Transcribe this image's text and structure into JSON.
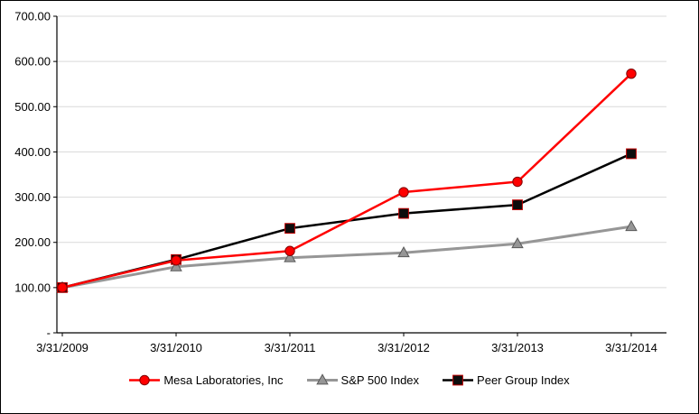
{
  "chart_data": {
    "type": "line",
    "title": "",
    "xlabel": "",
    "ylabel": "",
    "x": [
      "3/31/2009",
      "3/31/2010",
      "3/31/2011",
      "3/31/2012",
      "3/31/2013",
      "3/31/2014"
    ],
    "series": [
      {
        "name": "Mesa Laboratories, Inc",
        "marker": "circle",
        "color": "#FF0000",
        "marker_fill": "#FF0000",
        "marker_stroke": "#7F0000",
        "line_width": 2.5,
        "values": [
          100,
          160,
          181,
          311,
          334,
          573
        ]
      },
      {
        "name": "S&P 500 Index",
        "marker": "triangle",
        "color": "#969696",
        "marker_fill": "#969696",
        "marker_stroke": "#595959",
        "line_width": 3,
        "values": [
          100,
          146,
          166,
          177,
          197,
          235
        ]
      },
      {
        "name": "Peer Group Index",
        "marker": "square",
        "color": "#000000",
        "marker_fill": "#0D0D0D",
        "marker_stroke": "#C00000",
        "line_width": 2.5,
        "values": [
          100,
          162,
          231,
          264,
          283,
          396
        ]
      }
    ],
    "ylim": [
      0,
      700
    ],
    "y_tick_values": [
      700,
      600,
      500,
      400,
      300,
      200,
      100,
      0
    ],
    "y_ticks": [
      "700.00",
      "600.00",
      "500.00",
      "400.00",
      "300.00",
      "200.00",
      "100.00",
      "-"
    ],
    "grid": true,
    "gridline_color": "#D9D9D9",
    "axis_color": "#000000",
    "legend_position": "bottom"
  }
}
